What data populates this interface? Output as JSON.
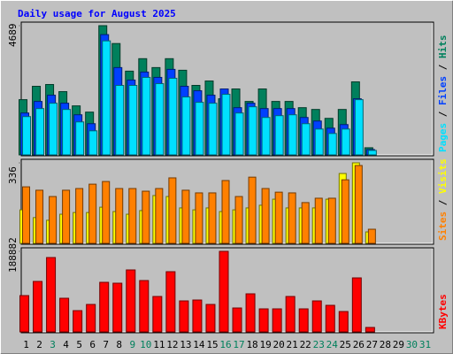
{
  "separator": "/",
  "chart_data": [
    {
      "type": "bar",
      "title": "Daily usage for August 2025",
      "ylim": [
        0,
        4689
      ],
      "yticks": [
        4689
      ],
      "series": [
        {
          "name": "Hits",
          "color": "#00805c",
          "values": [
            2022,
            2504,
            2568,
            2311,
            1798,
            1573,
            4689,
            4045,
            3050,
            3499,
            3178,
            3499,
            3082,
            2536,
            2696,
            2054,
            2408,
            1958,
            2408,
            1958,
            1958,
            1733,
            1669,
            1348,
            1669,
            2664,
            289,
            0,
            0,
            0,
            0
          ]
        },
        {
          "name": "Files",
          "color": "#0040ff",
          "values": [
            1541,
            1958,
            2183,
            1894,
            1477,
            1156,
            4366,
            3178,
            2729,
            3017,
            2825,
            3114,
            2504,
            2343,
            2183,
            2408,
            1733,
            1894,
            1701,
            1701,
            1701,
            1380,
            1252,
            995,
            1124,
            2054,
            225,
            0,
            0,
            0,
            0
          ]
        },
        {
          "name": "Pages",
          "color": "#00e0ff",
          "values": [
            1412,
            1701,
            1894,
            1669,
            1220,
            899,
            4141,
            2536,
            2536,
            2825,
            2600,
            2793,
            2119,
            1926,
            1894,
            2215,
            1541,
            1766,
            1380,
            1445,
            1477,
            1156,
            963,
            803,
            963,
            2022,
            193,
            0,
            0,
            0,
            0
          ]
        }
      ]
    },
    {
      "type": "bar",
      "ylim": [
        0,
        336
      ],
      "yticks": [
        336
      ],
      "series": [
        {
          "name": "Visits",
          "color": "#ffff00",
          "values": [
            142,
            110,
            99,
            124,
            131,
            131,
            153,
            135,
            124,
            139,
            201,
            197,
            150,
            142,
            150,
            135,
            142,
            150,
            161,
            186,
            150,
            150,
            150,
            186,
            292,
            336,
            51,
            0,
            0,
            0,
            0
          ]
        },
        {
          "name": "Sites",
          "color": "#ff8000",
          "values": [
            237,
            223,
            197,
            223,
            230,
            248,
            259,
            230,
            230,
            219,
            230,
            274,
            223,
            212,
            212,
            263,
            197,
            277,
            230,
            215,
            212,
            172,
            190,
            190,
            266,
            325,
            62,
            0,
            0,
            0,
            0
          ]
        }
      ]
    },
    {
      "type": "bar",
      "ylim": [
        0,
        188882
      ],
      "yticks": [
        188882
      ],
      "categories": [
        "1",
        "2",
        "3",
        "4",
        "5",
        "6",
        "7",
        "8",
        "9",
        "10",
        "11",
        "12",
        "13",
        "14",
        "15",
        "16",
        "17",
        "18",
        "19",
        "20",
        "21",
        "22",
        "23",
        "24",
        "25",
        "26",
        "27",
        "28",
        "29",
        "30",
        "31"
      ],
      "category_colors": [
        "#000000",
        "#000000",
        "#00805c",
        "#000000",
        "#000000",
        "#000000",
        "#000000",
        "#000000",
        "#00805c",
        "#00805c",
        "#000000",
        "#000000",
        "#000000",
        "#000000",
        "#000000",
        "#00805c",
        "#00805c",
        "#000000",
        "#000000",
        "#000000",
        "#000000",
        "#000000",
        "#00805c",
        "#00805c",
        "#000000",
        "#000000",
        "#000000",
        "#000000",
        "#000000",
        "#00805c",
        "#00805c"
      ],
      "series": [
        {
          "name": "KBytes",
          "color": "#ff0000",
          "values": [
            86226,
            119074,
            174505,
            80067,
            51325,
            65696,
            117021,
            114968,
            145763,
            121127,
            84173,
            141657,
            73908,
            75961,
            65696,
            188882,
            57484,
            90332,
            55431,
            55431,
            84173,
            55431,
            73908,
            63643,
            49272,
            127286,
            12318,
            0,
            0,
            0,
            0
          ]
        }
      ]
    }
  ]
}
